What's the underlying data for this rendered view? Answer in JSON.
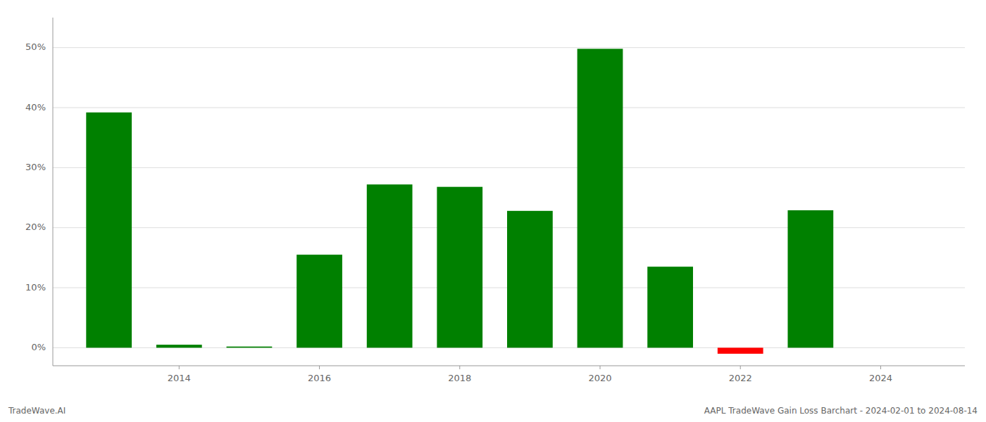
{
  "chart_data": {
    "type": "bar",
    "x": [
      2013,
      2014,
      2015,
      2016,
      2017,
      2018,
      2019,
      2020,
      2021,
      2022,
      2023
    ],
    "values": [
      39.2,
      0.5,
      0.2,
      15.5,
      27.2,
      26.8,
      22.8,
      49.8,
      13.5,
      -1.0,
      22.9
    ],
    "colors": [
      "#008000",
      "#008000",
      "#008000",
      "#008000",
      "#008000",
      "#008000",
      "#008000",
      "#008000",
      "#008000",
      "#FF0000",
      "#008000"
    ],
    "xlim": [
      2012.2,
      2025.2
    ],
    "xticks": [
      2014,
      2016,
      2018,
      2020,
      2022,
      2024
    ],
    "ylim": [
      -3,
      55
    ],
    "yticks": [
      {
        "value": 0,
        "label": "0%"
      },
      {
        "value": 10,
        "label": "10%"
      },
      {
        "value": 20,
        "label": "20%"
      },
      {
        "value": 30,
        "label": "30%"
      },
      {
        "value": 40,
        "label": "40%"
      },
      {
        "value": 50,
        "label": "50%"
      }
    ],
    "annotations": [
      "TradeWave.AI",
      "AAPL TradeWave Gain Loss Barchart - 2024-02-01 to 2024-08-14"
    ],
    "grid": true
  }
}
